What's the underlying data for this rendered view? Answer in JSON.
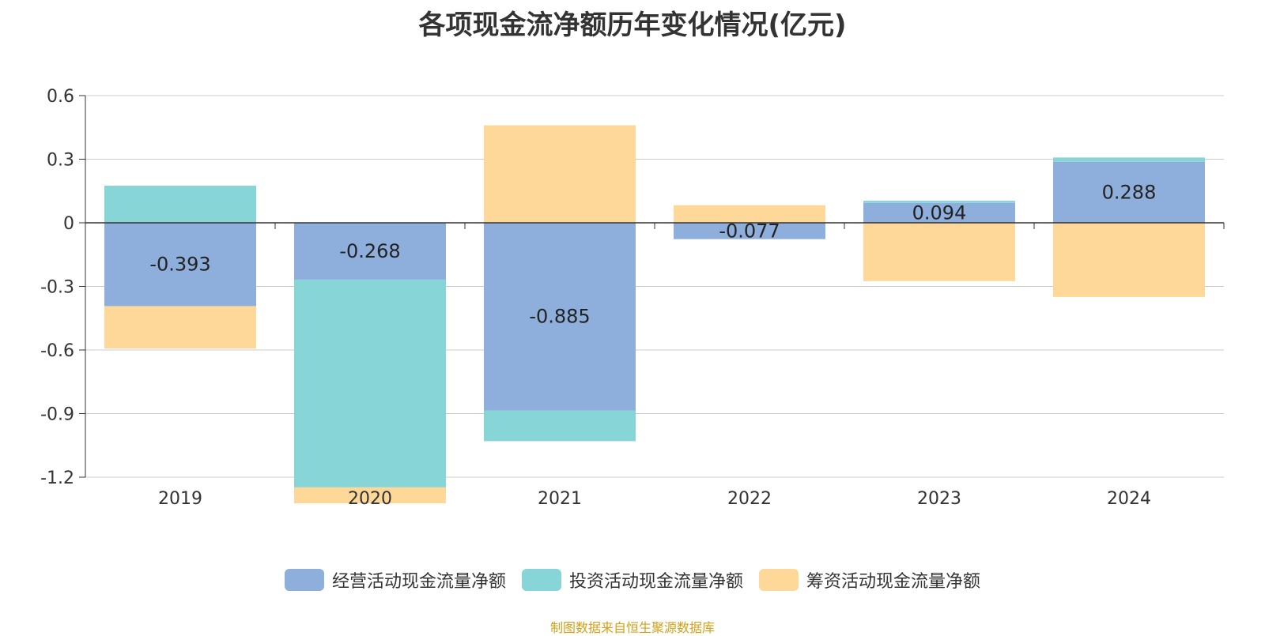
{
  "chart_data": {
    "type": "bar",
    "stacked": true,
    "title": "各项现金流净额历年变化情况(亿元)",
    "categories": [
      "2019",
      "2020",
      "2021",
      "2022",
      "2023",
      "2024"
    ],
    "ylim": [
      -1.2,
      0.6
    ],
    "yticks": [
      "0.6",
      "0.3",
      "0",
      "-0.3",
      "-0.6",
      "-0.9",
      "-1.2"
    ],
    "grid": true,
    "legend_position": "bottom-center",
    "series": [
      {
        "name": "经营活动现金流量净额",
        "color": "#8eaedc",
        "values": [
          -0.393,
          -0.268,
          -0.885,
          -0.077,
          0.094,
          0.288
        ],
        "labels": [
          "-0.393",
          "-0.268",
          "-0.885",
          "-0.077",
          "0.094",
          "0.288"
        ]
      },
      {
        "name": "投资活动现金流量净额",
        "color": "#88d5d8",
        "values": [
          0.175,
          -0.98,
          -0.145,
          0.0,
          0.01,
          0.02
        ]
      },
      {
        "name": "筹资活动现金流量净额",
        "color": "#fed899",
        "values": [
          -0.2,
          -0.075,
          0.46,
          0.083,
          -0.275,
          -0.35
        ]
      }
    ]
  },
  "source_note": "制图数据来自恒生聚源数据库",
  "source_color": "#d4a017"
}
